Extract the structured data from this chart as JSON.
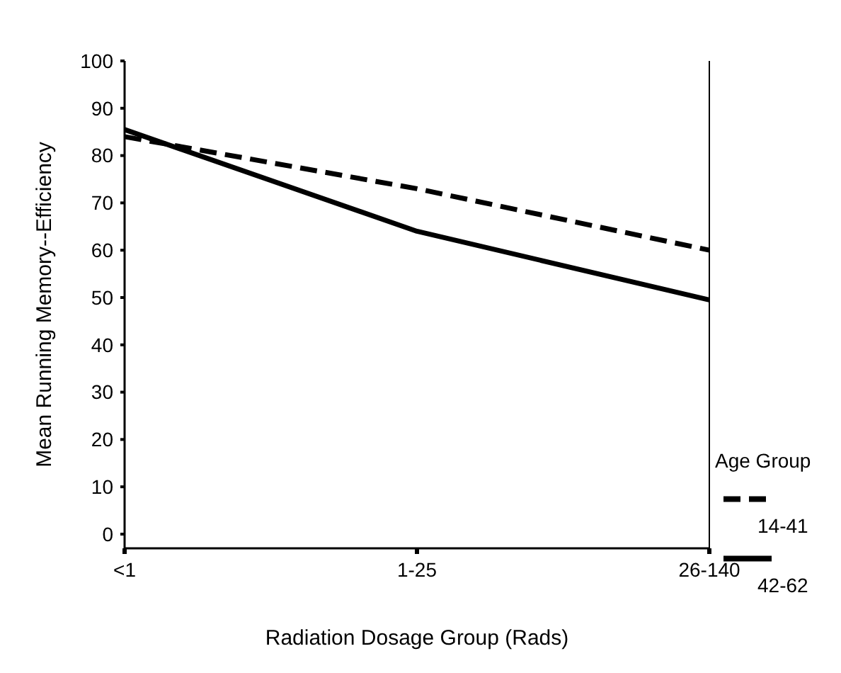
{
  "chart_data": {
    "type": "line",
    "xlabel": "Radiation Dosage Group (Rads)",
    "ylabel": "Mean Running Memory--Efficiency",
    "legend_title": "Age Group",
    "categories": [
      "<1",
      "1-25",
      "26-140"
    ],
    "series": [
      {
        "name": "14-41",
        "color": "#000000",
        "line_style": "dashed",
        "values": [
          84,
          73,
          60
        ]
      },
      {
        "name": "42-62",
        "color": "#000000",
        "line_style": "solid",
        "values": [
          85.5,
          64,
          49.5
        ]
      }
    ],
    "ylim": [
      -3,
      100
    ],
    "yticks": [
      0,
      10,
      20,
      30,
      40,
      50,
      60,
      70,
      80,
      90,
      100
    ],
    "legend": "right",
    "grid": false
  }
}
